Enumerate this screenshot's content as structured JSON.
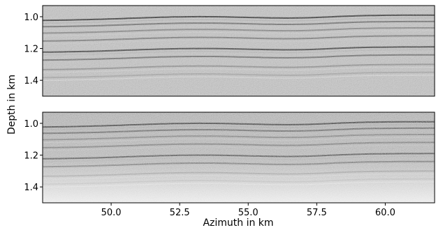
{
  "chart_data": [
    {
      "type": "heatmap",
      "panel": "top",
      "colormap": "grayscale",
      "y_axis": {
        "label": "Depth in km",
        "range": [
          0.93,
          1.5
        ],
        "inverted": true,
        "ticks": [
          "1.0",
          "1.2",
          "1.4"
        ],
        "tick_values": [
          1.0,
          1.2,
          1.4
        ]
      },
      "x_axis": {
        "range": [
          47.5,
          61.8
        ],
        "ticks": [],
        "tick_values": []
      },
      "reflectors": [
        {
          "base_depth": 0.99,
          "darkness": 0.85
        },
        {
          "base_depth": 1.03,
          "darkness": 0.6
        },
        {
          "base_depth": 1.07,
          "darkness": 0.5
        },
        {
          "base_depth": 1.12,
          "darkness": 0.55
        },
        {
          "base_depth": 1.19,
          "darkness": 0.8
        },
        {
          "base_depth": 1.24,
          "darkness": 0.6
        },
        {
          "base_depth": 1.3,
          "darkness": 0.45
        },
        {
          "base_depth": 1.35,
          "darkness": 0.35
        }
      ],
      "noise_level": "low"
    },
    {
      "type": "heatmap",
      "panel": "bottom",
      "colormap": "grayscale",
      "y_axis": {
        "label": "Depth in km",
        "range": [
          0.93,
          1.5
        ],
        "inverted": true,
        "ticks": [
          "1.0",
          "1.2",
          "1.4"
        ],
        "tick_values": [
          1.0,
          1.2,
          1.4
        ]
      },
      "x_axis": {
        "label": "Azimuth in km",
        "range": [
          47.5,
          61.8
        ],
        "ticks": [
          "50.0",
          "52.5",
          "55.0",
          "57.5",
          "60.0"
        ],
        "tick_values": [
          50.0,
          52.5,
          55.0,
          57.5,
          60.0
        ]
      },
      "reflectors": [
        {
          "base_depth": 0.99,
          "darkness": 0.9
        },
        {
          "base_depth": 1.03,
          "darkness": 0.7
        },
        {
          "base_depth": 1.07,
          "darkness": 0.55
        },
        {
          "base_depth": 1.12,
          "darkness": 0.6
        },
        {
          "base_depth": 1.19,
          "darkness": 0.85
        },
        {
          "base_depth": 1.24,
          "darkness": 0.65
        },
        {
          "base_depth": 1.3,
          "darkness": 0.5
        },
        {
          "base_depth": 1.35,
          "darkness": 0.4
        }
      ],
      "noise_level": "high"
    }
  ],
  "figure": {
    "ylabel": "Depth in km",
    "xlabel": "Azimuth in km"
  }
}
